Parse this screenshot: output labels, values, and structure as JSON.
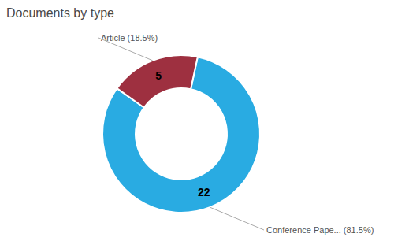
{
  "chart_data": {
    "type": "donut",
    "title": "Documents by type",
    "categories": [
      "Conference Pape... (81.5%)",
      "Article (18.5%)"
    ],
    "values": [
      22,
      5
    ],
    "colors": [
      "#29abe2",
      "#9e3040"
    ],
    "data_labels": true
  }
}
